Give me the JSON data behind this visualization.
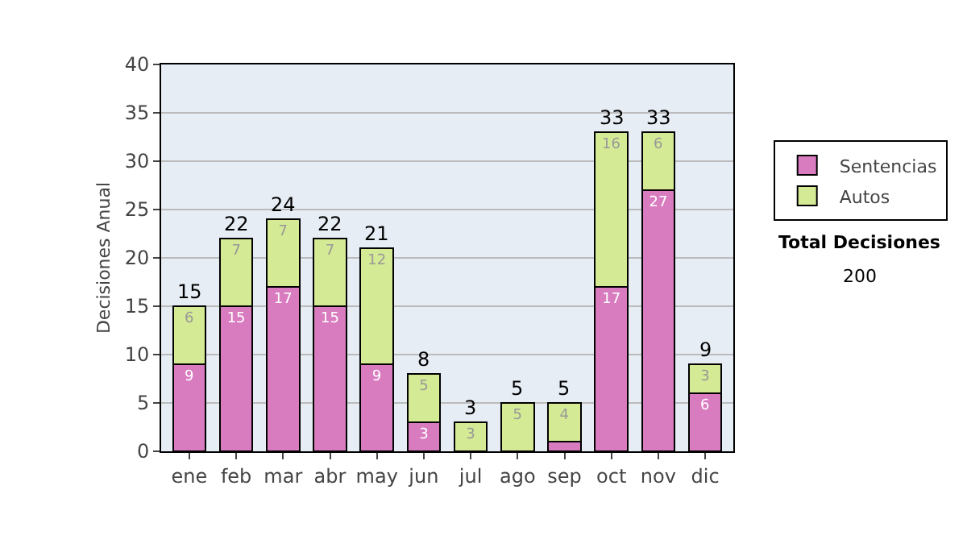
{
  "chart_data": {
    "type": "bar",
    "stacked": true,
    "ylabel": "Decisiones Anual",
    "categories": [
      "ene",
      "feb",
      "mar",
      "abr",
      "may",
      "jun",
      "jul",
      "ago",
      "sep",
      "oct",
      "nov",
      "dic"
    ],
    "series": [
      {
        "name": "Sentencias",
        "color": "#d97bbf",
        "values": [
          9,
          15,
          17,
          15,
          9,
          3,
          0,
          0,
          1,
          17,
          27,
          6
        ],
        "value_labels": [
          "9",
          "15",
          "17",
          "15",
          "9",
          "3",
          null,
          null,
          null,
          "17",
          "27",
          "6"
        ]
      },
      {
        "name": "Autos",
        "color": "#d4ea94",
        "values": [
          6,
          7,
          7,
          7,
          12,
          5,
          3,
          5,
          4,
          16,
          6,
          3
        ],
        "value_labels": [
          "6",
          "7",
          "7",
          "7",
          "12",
          "5",
          "3",
          "5",
          "4",
          "16",
          "6",
          "3"
        ]
      }
    ],
    "totals": [
      "15",
      "22",
      "24",
      "22",
      "21",
      "8",
      "3",
      "5",
      "5",
      "33",
      "33",
      "9"
    ],
    "ylim": [
      0,
      40
    ],
    "yticks": [
      0,
      5,
      10,
      15,
      20,
      25,
      30,
      35,
      40
    ],
    "grid": "y",
    "legend": "right",
    "annotations": [
      "Total Decisiones",
      "200"
    ]
  }
}
